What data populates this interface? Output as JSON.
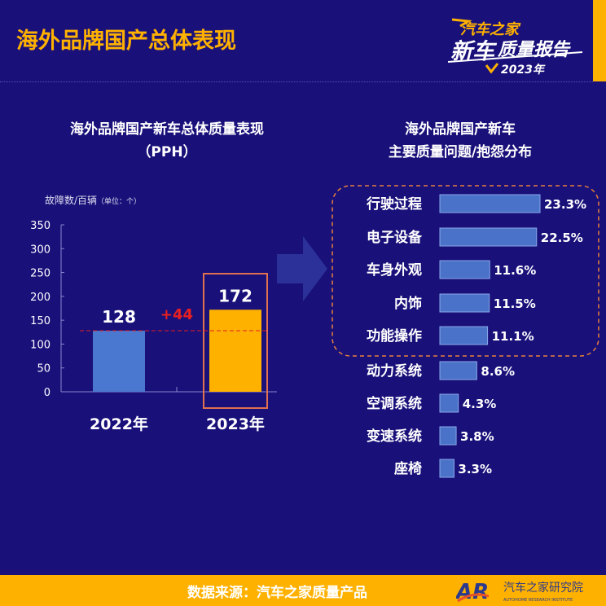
{
  "header": {
    "title": "海外品牌国产总体表现",
    "logo_text": [
      "汽车之家",
      "新车质量报告",
      "2023年"
    ]
  },
  "footer": {
    "source": "数据来源：汽车之家质量产品",
    "logo_text": "汽车之家研究院",
    "logo_sub": "AUTOHOME RESEARCH INSTITUTE"
  },
  "chart_data": [
    {
      "type": "bar",
      "title": "海外品牌国产新车总体质量表现",
      "subtitle": "（PPH）",
      "ylabel": "故障数/百辆",
      "unit_note": "（单位：个）",
      "categories": [
        "2022年",
        "2023年"
      ],
      "values": [
        128,
        172
      ],
      "ylim": [
        0,
        350
      ],
      "yticks": [
        0,
        50,
        100,
        150,
        200,
        250,
        300,
        350
      ],
      "colors": [
        "#4a78d0",
        "#ffb100"
      ],
      "annotation": "+44",
      "grid": false
    },
    {
      "type": "bar",
      "orientation": "horizontal",
      "title": "海外品牌国产新车",
      "subtitle": "主要质量问题/抱怨分布",
      "categories": [
        "行驶过程",
        "电子设备",
        "车身外观",
        "内饰",
        "功能操作",
        "动力系统",
        "空调系统",
        "变速系统",
        "座椅"
      ],
      "values": [
        23.3,
        22.5,
        11.6,
        11.5,
        11.1,
        8.6,
        4.3,
        3.8,
        3.3
      ],
      "value_suffix": "%",
      "color": "#4a72c8",
      "highlighted_top": 5
    }
  ]
}
